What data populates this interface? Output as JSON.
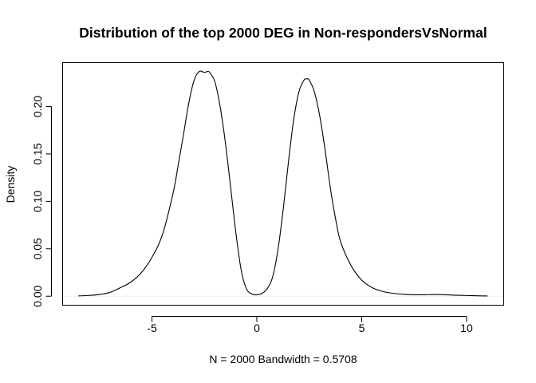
{
  "chart_data": {
    "type": "line",
    "title": "Distribution of the top 2000 DEG in Non-respondersVsNormal",
    "xlabel": "N = 2000   Bandwidth = 0.5708",
    "ylabel": "Density",
    "xlim": [
      -9.26,
      11.77
    ],
    "ylim": [
      -0.0095,
      0.2463
    ],
    "x_ticks": [
      -5,
      0,
      5,
      10
    ],
    "x_tick_labels": [
      "-5",
      "0",
      "5",
      "10"
    ],
    "y_ticks": [
      0.0,
      0.05,
      0.1,
      0.15,
      0.2
    ],
    "y_tick_labels": [
      "0.00",
      "0.05",
      "0.10",
      "0.15",
      "0.20"
    ],
    "grid": false,
    "baseline": {
      "y": 0,
      "color": "#eeeeee"
    },
    "series": [
      {
        "color": "#000000",
        "x": [
          -8.5,
          -8.0,
          -7.5,
          -7.0,
          -6.5,
          -6.0,
          -5.5,
          -5.0,
          -4.5,
          -4.0,
          -3.75,
          -3.5,
          -3.25,
          -3.0,
          -2.75,
          -2.5,
          -2.35,
          -2.25,
          -2.0,
          -1.75,
          -1.5,
          -1.25,
          -1.0,
          -0.75,
          -0.5,
          -0.25,
          0.0,
          0.25,
          0.5,
          0.75,
          1.0,
          1.25,
          1.5,
          1.75,
          2.0,
          2.25,
          2.4,
          2.5,
          2.75,
          3.0,
          3.25,
          3.5,
          3.75,
          4.0,
          4.5,
          5.0,
          5.5,
          6.0,
          6.5,
          7.0,
          7.5,
          8.0,
          8.5,
          9.0,
          9.5,
          10.0,
          10.5,
          11.0
        ],
        "y": [
          0.0003,
          0.0008,
          0.0018,
          0.004,
          0.009,
          0.015,
          0.025,
          0.041,
          0.065,
          0.108,
          0.138,
          0.17,
          0.203,
          0.227,
          0.237,
          0.236,
          0.237,
          0.236,
          0.226,
          0.2,
          0.162,
          0.115,
          0.067,
          0.028,
          0.008,
          0.0025,
          0.0015,
          0.003,
          0.008,
          0.02,
          0.048,
          0.09,
          0.14,
          0.185,
          0.215,
          0.228,
          0.229,
          0.228,
          0.215,
          0.19,
          0.155,
          0.115,
          0.082,
          0.057,
          0.032,
          0.017,
          0.009,
          0.005,
          0.003,
          0.002,
          0.0015,
          0.0015,
          0.0018,
          0.0015,
          0.001,
          0.0007,
          0.0004,
          0.0002
        ]
      }
    ]
  }
}
